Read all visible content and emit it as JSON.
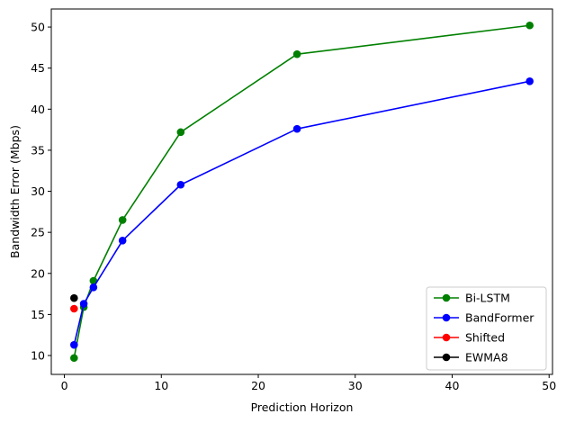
{
  "chart_data": {
    "type": "line",
    "title": "",
    "xlabel": "Prediction Horizon",
    "ylabel": "Bandwidth Error (Mbps)",
    "xlim": [
      -1.35,
      50.35
    ],
    "ylim": [
      7.7,
      52.2
    ],
    "xticks": [
      0,
      10,
      20,
      30,
      40,
      50
    ],
    "yticks": [
      10,
      15,
      20,
      25,
      30,
      35,
      40,
      45,
      50
    ],
    "grid": false,
    "legend_position": "lower-right",
    "series": [
      {
        "name": "Bi-LSTM",
        "color": "#008000",
        "marker": "circle",
        "x": [
          1,
          2,
          3,
          6,
          12,
          24,
          48
        ],
        "y": [
          9.7,
          15.9,
          19.1,
          26.5,
          37.2,
          46.7,
          50.2
        ]
      },
      {
        "name": "BandFormer",
        "color": "#0000ff",
        "marker": "circle",
        "x": [
          1,
          2,
          3,
          6,
          12,
          24,
          48
        ],
        "y": [
          11.3,
          16.3,
          18.3,
          24.0,
          30.8,
          37.6,
          43.4
        ]
      },
      {
        "name": "Shifted",
        "color": "#ff0000",
        "marker": "circle",
        "x": [
          1
        ],
        "y": [
          15.7
        ]
      },
      {
        "name": "EWMA8",
        "color": "#000000",
        "marker": "circle",
        "x": [
          1
        ],
        "y": [
          17.0
        ]
      }
    ]
  }
}
